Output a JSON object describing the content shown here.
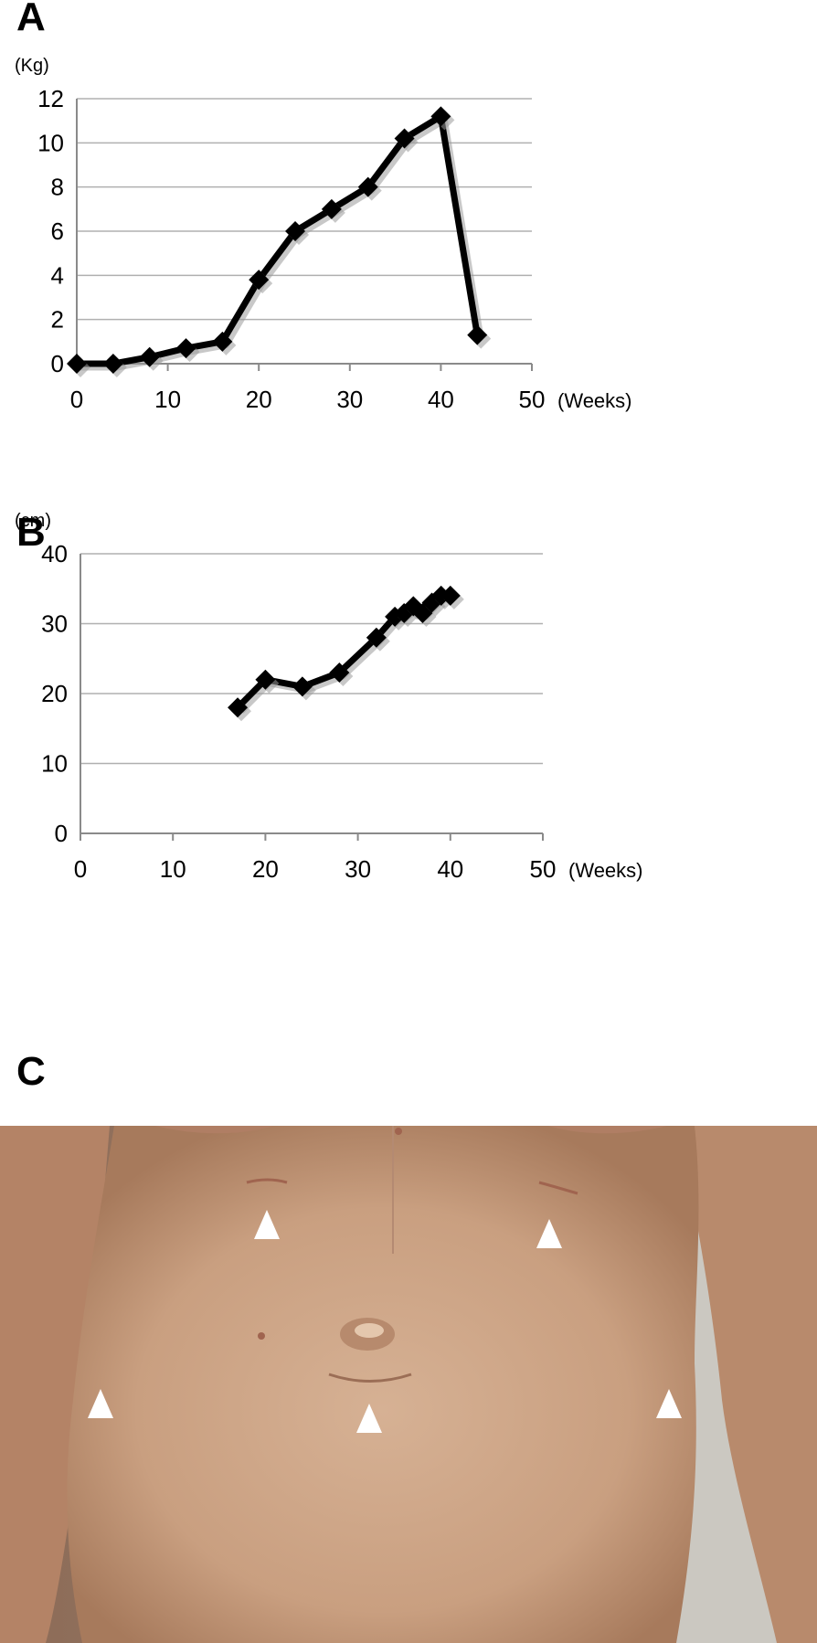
{
  "panels": {
    "a": {
      "letter": "A"
    },
    "b": {
      "letter": "B"
    },
    "c": {
      "letter": "C"
    }
  },
  "chart_data": [
    {
      "type": "line",
      "ylabel": "(Kg)",
      "xlabel": "(Weeks)",
      "xlim": [
        0,
        50
      ],
      "ylim": [
        0,
        12
      ],
      "xticks": [
        0,
        10,
        20,
        30,
        40,
        50
      ],
      "yticks": [
        0,
        2,
        4,
        6,
        8,
        10,
        12
      ],
      "grid": true,
      "series": [
        {
          "x": [
            0,
            4,
            8,
            12,
            16,
            20,
            24,
            28,
            32,
            36,
            40,
            44
          ],
          "y": [
            0,
            0,
            0.3,
            0.7,
            1.0,
            3.8,
            6.0,
            7.0,
            8.0,
            10.2,
            11.2,
            1.3
          ]
        }
      ]
    },
    {
      "type": "line",
      "ylabel": "(cm)",
      "xlabel": "(Weeks)",
      "xlim": [
        0,
        50
      ],
      "ylim": [
        0,
        40
      ],
      "xticks": [
        0,
        10,
        20,
        30,
        40,
        50
      ],
      "yticks": [
        0,
        10,
        20,
        30,
        40
      ],
      "grid": true,
      "series": [
        {
          "x": [
            17,
            20,
            24,
            28,
            32,
            34,
            35,
            36,
            37,
            38,
            39,
            40
          ],
          "y": [
            18,
            22,
            21,
            23,
            28,
            31,
            31.5,
            32.5,
            31.5,
            33,
            34,
            34
          ]
        }
      ]
    }
  ],
  "photo": {
    "arrowhead_color": "#ffffff",
    "skin_color": "#c9a183"
  }
}
